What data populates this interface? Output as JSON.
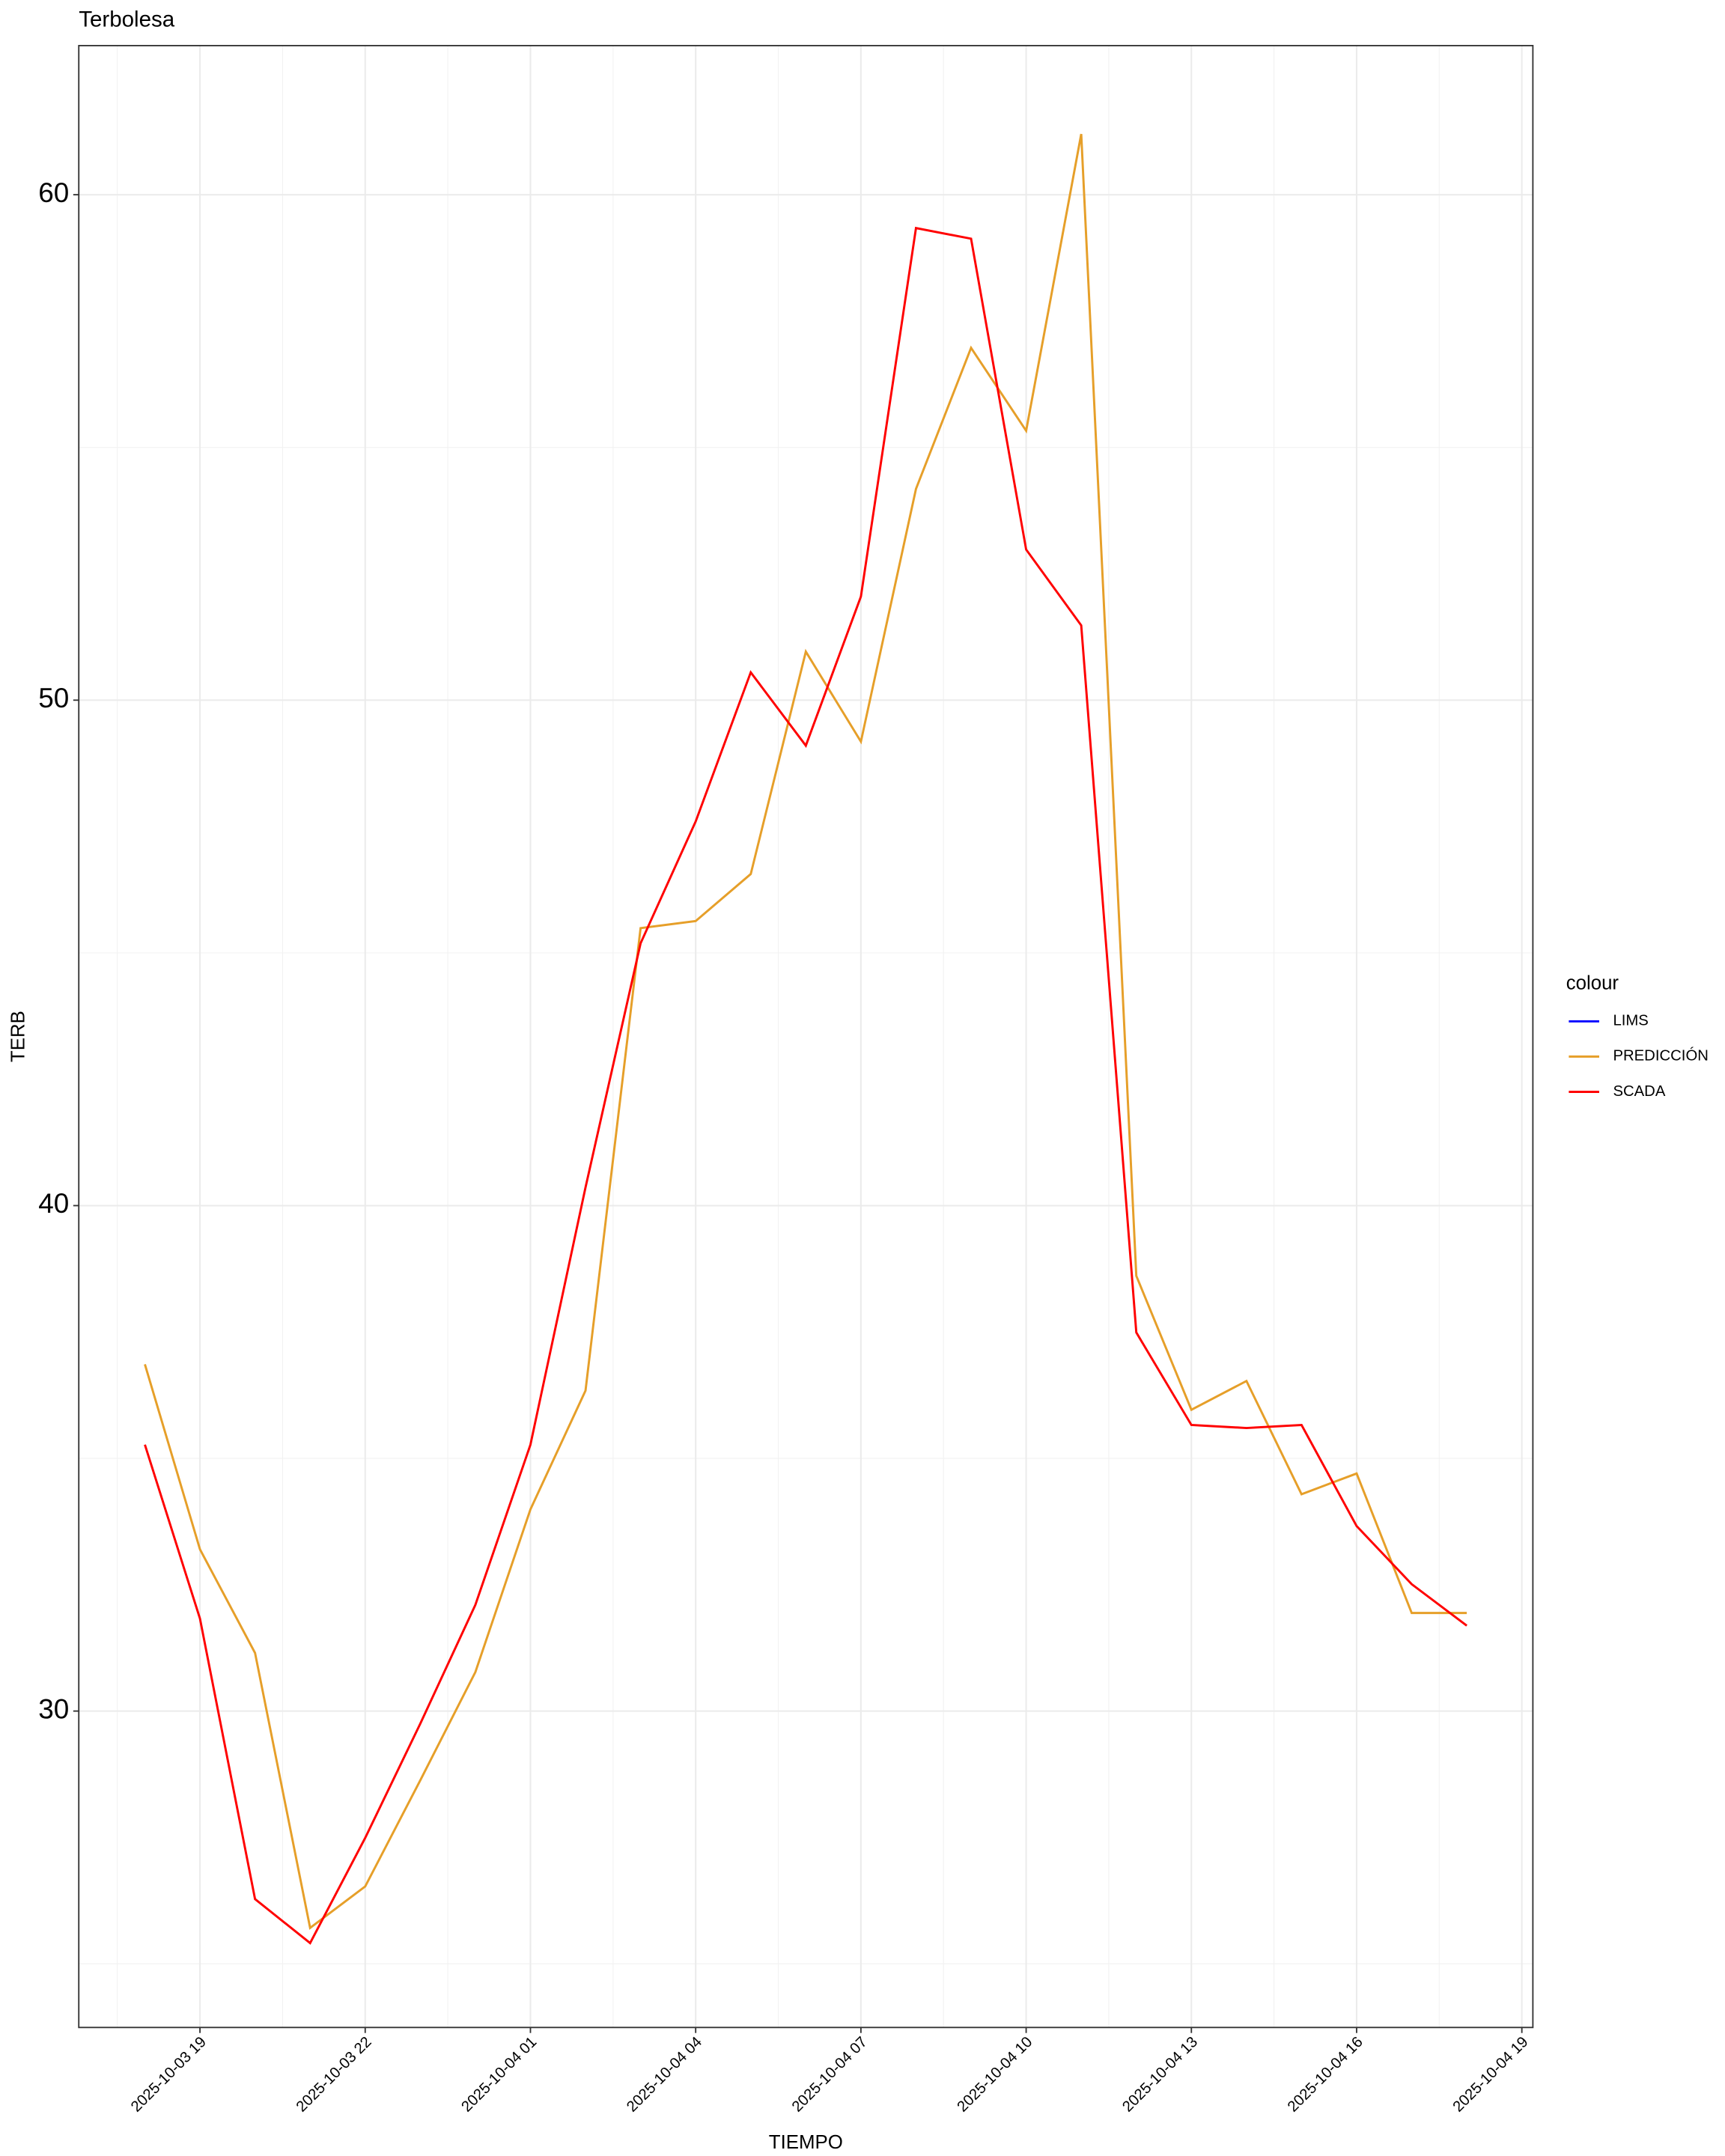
{
  "chart_data": {
    "type": "line",
    "title": "Terbolesa",
    "x_label": "TIEMPO",
    "y_label": "TERB",
    "x": [
      "2025-10-03 18",
      "2025-10-03 19",
      "2025-10-03 20",
      "2025-10-03 21",
      "2025-10-03 22",
      "2025-10-03 23",
      "2025-10-04 00",
      "2025-10-04 01",
      "2025-10-04 02",
      "2025-10-04 03",
      "2025-10-04 04",
      "2025-10-04 05",
      "2025-10-04 06",
      "2025-10-04 07",
      "2025-10-04 08",
      "2025-10-04 09",
      "2025-10-04 10",
      "2025-10-04 11",
      "2025-10-04 12",
      "2025-10-04 13",
      "2025-10-04 14",
      "2025-10-04 15",
      "2025-10-04 16",
      "2025-10-04 17",
      "2025-10-04 18"
    ],
    "series": [
      {
        "name": "LIMS",
        "color": "#0000ff",
        "values": [
          null,
          null,
          null,
          null,
          null,
          null,
          null,
          null,
          null,
          null,
          null,
          null,
          null,
          null,
          null,
          null,
          null,
          null,
          null,
          null,
          null,
          null,
          null,
          null,
          null
        ]
      },
      {
        "name": "PREDICCIÓN",
        "color": "#e69f29",
        "values": [
          36.86,
          33.2,
          31.15,
          25.71,
          26.53,
          28.63,
          30.77,
          33.99,
          36.34,
          45.49,
          45.63,
          46.56,
          50.96,
          49.18,
          54.18,
          56.97,
          55.33,
          61.2,
          38.61,
          35.96,
          36.53,
          34.29,
          34.7,
          31.94,
          31.94
        ]
      },
      {
        "name": "SCADA",
        "color": "#ff0000",
        "values": [
          35.27,
          31.83,
          26.28,
          25.41,
          27.49,
          29.75,
          32.1,
          35.27,
          40.36,
          45.19,
          47.6,
          50.55,
          49.1,
          52.05,
          59.34,
          59.13,
          52.98,
          51.48,
          37.49,
          35.66,
          35.6,
          35.66,
          33.66,
          32.51,
          31.69
        ]
      }
    ],
    "legend_title": "colour",
    "legend_position": "right",
    "xlim": [
      "2025-10-03 18",
      "2025-10-04 18"
    ],
    "xticks": [
      "2025-10-03 19",
      "2025-10-03 22",
      "2025-10-04 01",
      "2025-10-04 04",
      "2025-10-04 07",
      "2025-10-04 10",
      "2025-10-04 13",
      "2025-10-04 16",
      "2025-10-04 19"
    ],
    "ylim": [
      23.74,
      62.95
    ],
    "yticks": [
      30,
      40,
      50,
      60
    ],
    "grid": true
  }
}
